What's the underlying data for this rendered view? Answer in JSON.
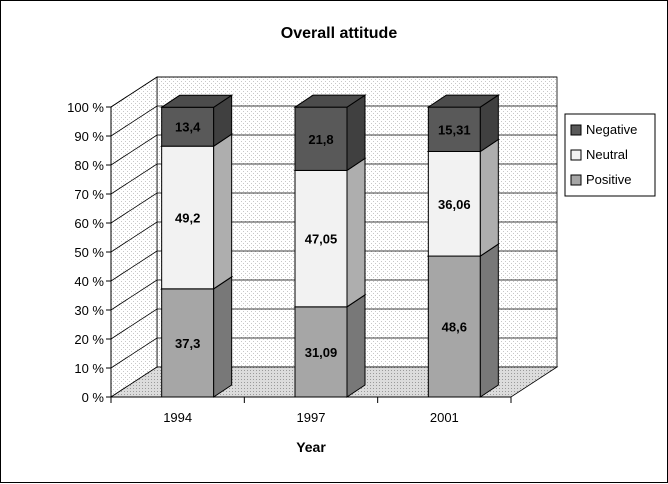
{
  "chart_data": {
    "type": "bar",
    "stacked": true,
    "percent_stacked": true,
    "three_d": true,
    "title": "Overall attitude",
    "xlabel": "Year",
    "ylabel": "",
    "categories": [
      "1994",
      "1997",
      "2001"
    ],
    "series": [
      {
        "name": "Positive",
        "values": [
          37.3,
          31.09,
          48.6
        ],
        "labels": [
          "37,3",
          "31,09",
          "48,6"
        ],
        "color": "#a6a6a6",
        "pattern": "dots-dense"
      },
      {
        "name": "Neutral",
        "values": [
          49.2,
          47.05,
          36.06
        ],
        "labels": [
          "49,2",
          "47,05",
          "36,06"
        ],
        "color": "#f2f2f2",
        "pattern": "dots-light"
      },
      {
        "name": "Negative",
        "values": [
          13.4,
          21.8,
          15.31
        ],
        "labels": [
          "13,4",
          "21,8",
          "15,31"
        ],
        "color": "#595959",
        "pattern": "dots-dark"
      }
    ],
    "yticks": [
      "0 %",
      "10 %",
      "20 %",
      "30 %",
      "40 %",
      "50 %",
      "60 %",
      "70 %",
      "80 %",
      "90 %",
      "100 %"
    ],
    "ylim": [
      0,
      100
    ],
    "grid": true,
    "legend": {
      "position": "right",
      "order": [
        "Negative",
        "Neutral",
        "Positive"
      ]
    }
  }
}
